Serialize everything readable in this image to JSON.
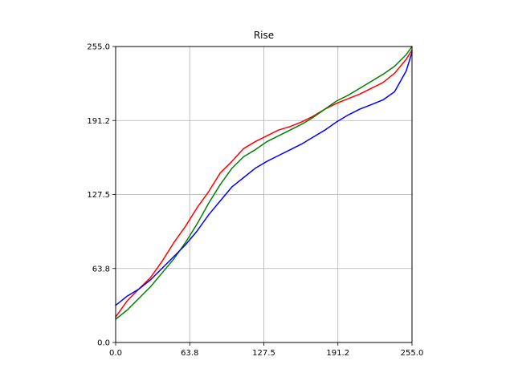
{
  "chart_data": {
    "type": "line",
    "title": "Rise",
    "xlabel": "",
    "ylabel": "",
    "xlim": [
      0,
      255
    ],
    "ylim": [
      0,
      255
    ],
    "xticks": [
      "0.0",
      "63.8",
      "127.5",
      "191.2",
      "255.0"
    ],
    "yticks": [
      "0.0",
      "63.8",
      "127.5",
      "191.2",
      "255.0"
    ],
    "xtick_values": [
      0,
      63.75,
      127.5,
      191.25,
      255
    ],
    "ytick_values": [
      0,
      63.75,
      127.5,
      191.25,
      255
    ],
    "grid": true,
    "series": [
      {
        "color": "#ff0000",
        "x": [
          0,
          10,
          20,
          30,
          40,
          50,
          60,
          70,
          80,
          90,
          100,
          110,
          120,
          130,
          140,
          150,
          160,
          170,
          180,
          190,
          200,
          210,
          220,
          230,
          240,
          250,
          255
        ],
        "y": [
          22,
          36,
          46,
          56,
          70,
          86,
          100,
          116,
          130,
          146,
          156,
          167,
          173,
          178,
          183,
          186,
          190,
          195,
          201,
          206,
          210,
          214,
          219,
          224,
          232,
          244,
          252
        ]
      },
      {
        "color": "#008000",
        "x": [
          0,
          10,
          20,
          30,
          40,
          50,
          60,
          70,
          80,
          90,
          100,
          110,
          120,
          130,
          140,
          150,
          160,
          170,
          180,
          190,
          200,
          210,
          220,
          230,
          240,
          250,
          255
        ],
        "y": [
          20,
          28,
          38,
          48,
          60,
          72,
          86,
          102,
          120,
          136,
          150,
          160,
          166,
          173,
          178,
          183,
          188,
          194,
          201,
          208,
          213,
          219,
          225,
          231,
          238,
          248,
          255
        ]
      },
      {
        "color": "#0000ff",
        "x": [
          0,
          10,
          20,
          30,
          40,
          50,
          60,
          70,
          80,
          90,
          100,
          110,
          120,
          130,
          140,
          150,
          160,
          170,
          180,
          190,
          200,
          210,
          220,
          230,
          240,
          250,
          255
        ],
        "y": [
          32,
          40,
          46,
          54,
          64,
          74,
          84,
          96,
          110,
          122,
          134,
          142,
          150,
          156,
          161,
          166,
          171,
          177,
          183,
          190,
          196,
          201,
          205,
          209,
          216,
          234,
          250
        ]
      }
    ]
  }
}
